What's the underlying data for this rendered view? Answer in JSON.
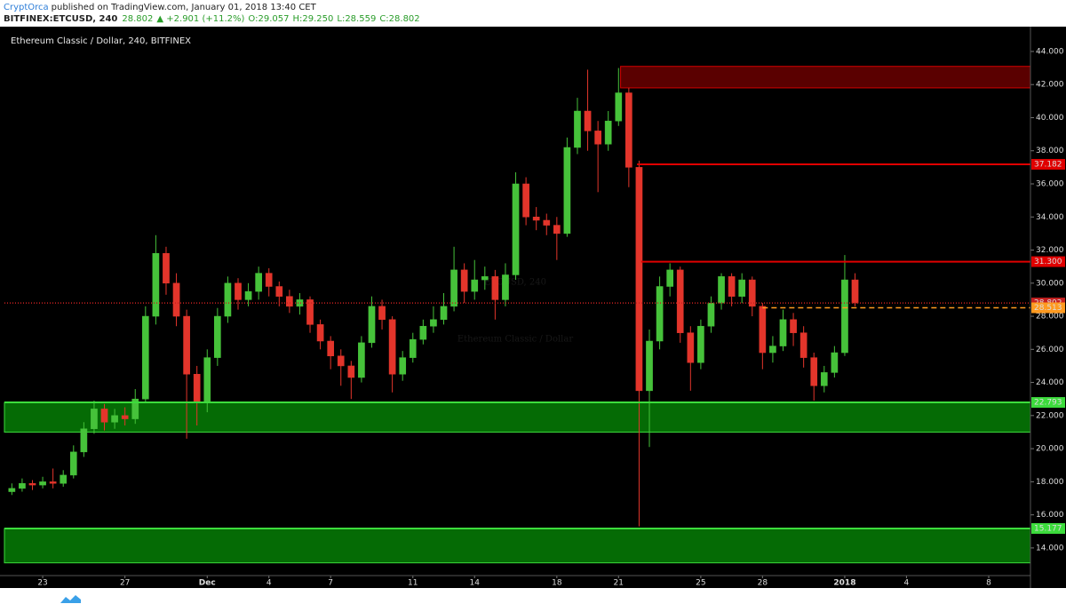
{
  "header": {
    "author": "CryptOrca",
    "published": "published on TradingView.com, January 01, 2018 13:40 CET",
    "symbol": "BITFINEX:ETCUSD, 240",
    "last": "28.802",
    "change": "▲ +2.901 (+11.2%)",
    "ohlc": [
      "O:29.057",
      "H:29.250",
      "L:28.559",
      "C:28.802"
    ]
  },
  "chart_data": {
    "type": "candlestick",
    "title": "Ethereum Classic / Dollar, 240, BITFINEX",
    "watermark": [
      "ETCUSD, 240",
      "Ethereum Classic / Dollar"
    ],
    "up_color": "#46c23a",
    "down_color": "#e3352b",
    "xlim": [
      -1.86,
      48.03
    ],
    "ylim": [
      12.33,
      45.5
    ],
    "xticks": [
      {
        "value": 0,
        "label": "23"
      },
      {
        "value": 4,
        "label": "27"
      },
      {
        "value": 8,
        "label": "Dec"
      },
      {
        "value": 11,
        "label": "4"
      },
      {
        "value": 14,
        "label": "7"
      },
      {
        "value": 18,
        "label": "11"
      },
      {
        "value": 21,
        "label": "14"
      },
      {
        "value": 25,
        "label": "18"
      },
      {
        "value": 28,
        "label": "21"
      },
      {
        "value": 32,
        "label": "25"
      },
      {
        "value": 35,
        "label": "28"
      },
      {
        "value": 39,
        "label": "2018"
      },
      {
        "value": 42,
        "label": "4"
      },
      {
        "value": 46,
        "label": "8"
      }
    ],
    "yticks": [
      {
        "value": 14,
        "label": "14.000"
      },
      {
        "value": 16,
        "label": "16.000"
      },
      {
        "value": 18,
        "label": "18.000"
      },
      {
        "value": 20,
        "label": "20.000"
      },
      {
        "value": 22,
        "label": "22.000"
      },
      {
        "value": 24,
        "label": "24.000"
      },
      {
        "value": 26,
        "label": "26.000"
      },
      {
        "value": 28,
        "label": "28.000"
      },
      {
        "value": 30,
        "label": "30.000"
      },
      {
        "value": 32,
        "label": "32.000"
      },
      {
        "value": 34,
        "label": "34.000"
      },
      {
        "value": 36,
        "label": "36.000"
      },
      {
        "value": 38,
        "label": "38.000"
      },
      {
        "value": 40,
        "label": "40.000"
      },
      {
        "value": 42,
        "label": "42.000"
      },
      {
        "value": 44,
        "label": "44.000"
      }
    ],
    "x": [
      -1.5,
      -1,
      -0.5,
      0,
      0.5,
      1,
      1.5,
      2,
      2.5,
      3,
      3.5,
      4,
      4.5,
      5,
      5.5,
      6,
      6.5,
      7,
      7.5,
      8,
      8.5,
      9,
      9.5,
      10,
      10.5,
      11,
      11.5,
      12,
      12.5,
      13,
      13.5,
      14,
      14.5,
      15,
      15.5,
      16,
      16.5,
      17,
      17.5,
      18,
      18.5,
      19,
      19.5,
      20,
      20.5,
      21,
      21.5,
      22,
      22.5,
      23,
      23.5,
      24,
      24.5,
      25,
      25.5,
      26,
      26.5,
      27,
      27.5,
      28,
      28.5,
      29,
      29.5,
      30,
      30.5,
      31,
      31.5,
      32,
      32.5,
      33,
      33.5,
      34,
      34.5,
      35,
      35.5,
      36,
      36.5,
      37,
      37.5,
      38,
      38.5,
      39,
      39.5
    ],
    "open": [
      17.4,
      17.6,
      17.9,
      17.8,
      18.0,
      17.9,
      18.4,
      19.8,
      21.2,
      22.4,
      21.6,
      22.0,
      21.8,
      23.0,
      28.0,
      31.8,
      30.0,
      28.0,
      24.5,
      22.8,
      25.5,
      28.0,
      30.0,
      29.0,
      29.5,
      30.6,
      29.8,
      29.2,
      28.6,
      29.0,
      27.5,
      26.5,
      25.6,
      25.0,
      24.3,
      26.4,
      28.6,
      27.8,
      24.5,
      25.5,
      26.6,
      27.4,
      27.8,
      28.6,
      30.8,
      29.5,
      30.2,
      30.4,
      29.0,
      30.5,
      36.0,
      34.0,
      33.8,
      33.5,
      33.0,
      38.2,
      40.4,
      39.2,
      38.4,
      39.8,
      41.5,
      37.0,
      23.5,
      26.5,
      29.8,
      30.8,
      27.0,
      25.2,
      27.4,
      28.8,
      30.4,
      29.2,
      30.2,
      28.6,
      25.8,
      26.2,
      27.8,
      27.0,
      25.5,
      23.8,
      24.6,
      25.8,
      30.2
    ],
    "high": [
      17.9,
      18.2,
      18.1,
      18.3,
      18.8,
      18.7,
      20.2,
      21.6,
      22.9,
      22.7,
      22.4,
      22.5,
      23.6,
      28.6,
      32.9,
      32.2,
      30.6,
      28.4,
      25.0,
      26.0,
      28.5,
      30.4,
      30.3,
      30.0,
      31.0,
      30.9,
      30.1,
      29.6,
      29.4,
      29.2,
      27.8,
      26.8,
      26.0,
      25.3,
      26.8,
      29.2,
      29.0,
      28.0,
      25.9,
      27.0,
      27.8,
      28.6,
      29.4,
      32.2,
      31.2,
      31.4,
      31.0,
      30.8,
      31.2,
      36.7,
      36.4,
      34.6,
      34.2,
      34.0,
      38.8,
      41.2,
      42.9,
      39.8,
      40.4,
      43.0,
      41.8,
      37.4,
      27.2,
      30.4,
      31.2,
      31.0,
      27.4,
      27.8,
      29.2,
      30.6,
      30.6,
      30.6,
      30.4,
      28.8,
      26.8,
      28.4,
      28.2,
      27.4,
      25.8,
      25.0,
      26.2,
      31.7,
      30.6
    ],
    "low": [
      17.2,
      17.4,
      17.5,
      17.6,
      17.6,
      17.7,
      18.2,
      19.5,
      20.9,
      21.1,
      21.2,
      21.4,
      21.5,
      22.8,
      27.5,
      29.3,
      27.4,
      20.6,
      21.4,
      22.2,
      25.0,
      27.6,
      28.4,
      28.6,
      29.0,
      29.2,
      28.6,
      28.2,
      28.1,
      27.0,
      26.0,
      24.8,
      23.8,
      23.0,
      24.0,
      26.1,
      27.2,
      23.4,
      24.1,
      25.2,
      26.3,
      27.0,
      27.5,
      28.3,
      28.8,
      29.0,
      29.6,
      27.8,
      28.6,
      30.2,
      33.5,
      33.2,
      32.9,
      31.4,
      32.8,
      37.8,
      38.0,
      35.5,
      38.0,
      39.5,
      35.8,
      15.3,
      20.1,
      26.0,
      29.2,
      26.4,
      23.5,
      24.8,
      27.0,
      28.4,
      28.6,
      28.8,
      28.0,
      24.8,
      25.2,
      25.9,
      26.2,
      24.9,
      22.9,
      23.4,
      24.3,
      25.6,
      28.6
    ],
    "close": [
      17.6,
      17.9,
      17.8,
      18.0,
      17.9,
      18.4,
      19.8,
      21.2,
      22.4,
      21.6,
      22.0,
      21.8,
      23.0,
      28.0,
      31.8,
      30.0,
      28.0,
      24.5,
      22.8,
      25.5,
      28.0,
      30.0,
      29.0,
      29.5,
      30.6,
      29.8,
      29.2,
      28.6,
      29.0,
      27.5,
      26.5,
      25.6,
      25.0,
      24.3,
      26.4,
      28.6,
      27.8,
      24.5,
      25.5,
      26.6,
      27.4,
      27.8,
      28.6,
      30.8,
      29.5,
      30.2,
      30.4,
      29.0,
      30.5,
      36.0,
      34.0,
      33.8,
      33.5,
      33.0,
      38.2,
      40.4,
      39.2,
      38.4,
      39.8,
      41.5,
      37.0,
      23.5,
      26.5,
      29.8,
      30.8,
      27.0,
      25.2,
      27.4,
      28.8,
      30.4,
      29.2,
      30.2,
      28.6,
      25.8,
      26.2,
      27.8,
      27.0,
      25.5,
      23.8,
      24.6,
      25.8,
      30.2,
      28.8
    ],
    "zones": [
      {
        "from": 28.1,
        "top": 43.1,
        "bottom": 41.8,
        "fill": "#5a0000",
        "stroke": "#d40000"
      },
      {
        "from": -1.86,
        "top": 22.793,
        "bottom": 21.0,
        "fill": "#056b05",
        "stroke": "#3cdc3c"
      },
      {
        "from": -1.86,
        "top": 15.177,
        "bottom": 13.1,
        "fill": "#056b05",
        "stroke": "#3cdc3c"
      }
    ],
    "levels": [
      {
        "price": 37.182,
        "from": 28.9,
        "color": "#e00000",
        "style": "solid"
      },
      {
        "price": {
          "value": 31.3,
          "label": "31.300"
        },
        "from": 29.1,
        "color": "#e00000",
        "style": "solid"
      },
      {
        "price": 28.802,
        "from": -1.86,
        "color": "#c62020",
        "style": "dotted"
      },
      {
        "price": 28.513,
        "from": 35.0,
        "color": "#ff9a1f",
        "style": "dashed"
      },
      {
        "price": 22.793,
        "from": -1.86,
        "color": "#3cdc3c",
        "style": "solid"
      },
      {
        "price": 15.177,
        "from": -1.86,
        "color": "#3cdc3c",
        "style": "solid"
      }
    ]
  }
}
